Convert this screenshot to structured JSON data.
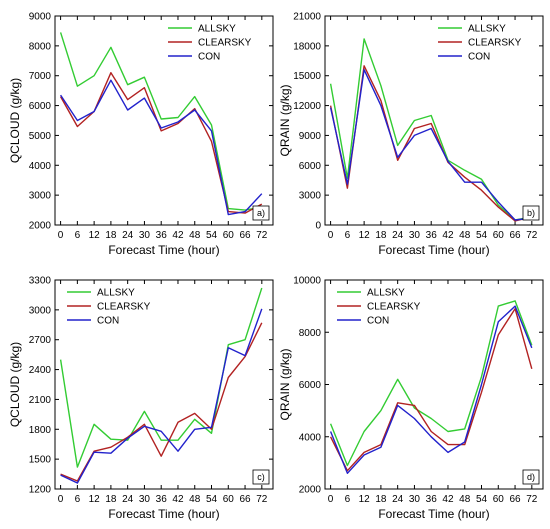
{
  "colors": {
    "ALLSKY": "#33cc33",
    "CLEARSKY": "#b22222",
    "CON": "#2222cc"
  },
  "chart_data": [
    {
      "type": "line",
      "panel_tag": "a)",
      "xlabel": "Forecast Time (hour)",
      "ylabel": "QCLOUD (g/kg)",
      "x": [
        0,
        6,
        12,
        18,
        24,
        30,
        36,
        42,
        48,
        54,
        60,
        66,
        72
      ],
      "xlim": [
        -2,
        76
      ],
      "ylim": [
        2000,
        9000
      ],
      "yticks": [
        2000,
        3000,
        4000,
        5000,
        6000,
        7000,
        8000,
        9000
      ],
      "legend_position": "top-right",
      "series": [
        {
          "name": "ALLSKY",
          "color": "#33cc33",
          "values": [
            8450,
            6650,
            7000,
            7950,
            6700,
            6950,
            5550,
            5600,
            6300,
            5350,
            2550,
            2500,
            2600
          ]
        },
        {
          "name": "CLEARSKY",
          "color": "#b22222",
          "values": [
            6300,
            5300,
            5800,
            7100,
            6200,
            6600,
            5150,
            5400,
            5900,
            4800,
            2450,
            2400,
            2700
          ]
        },
        {
          "name": "CON",
          "color": "#2222cc",
          "values": [
            6350,
            5500,
            5800,
            6850,
            5850,
            6250,
            5250,
            5450,
            5850,
            5150,
            2350,
            2450,
            3050
          ]
        }
      ]
    },
    {
      "type": "line",
      "panel_tag": "b)",
      "xlabel": "Forecast Time (hour)",
      "ylabel": "QRAIN (g/kg)",
      "x": [
        0,
        6,
        12,
        18,
        24,
        30,
        36,
        42,
        48,
        54,
        60,
        66,
        72
      ],
      "xlim": [
        -2,
        76
      ],
      "ylim": [
        0,
        21000
      ],
      "yticks": [
        0,
        3000,
        6000,
        9000,
        12000,
        15000,
        18000,
        21000
      ],
      "legend_position": "top-right",
      "series": [
        {
          "name": "ALLSKY",
          "color": "#33cc33",
          "values": [
            14200,
            4700,
            18700,
            14000,
            8000,
            10500,
            11000,
            6500,
            5500,
            4600,
            2000,
            500,
            800
          ]
        },
        {
          "name": "CLEARSKY",
          "color": "#b22222",
          "values": [
            12000,
            3700,
            16000,
            12500,
            6500,
            9700,
            10200,
            6300,
            4800,
            3500,
            1800,
            400,
            800
          ]
        },
        {
          "name": "CON",
          "color": "#2222cc",
          "values": [
            11800,
            4100,
            15600,
            12000,
            6800,
            9000,
            9700,
            6400,
            4300,
            4300,
            2300,
            500,
            700
          ]
        }
      ]
    },
    {
      "type": "line",
      "panel_tag": "c)",
      "xlabel": "Forecast Time (hour)",
      "ylabel": "QCLOUD (g/kg)",
      "x": [
        0,
        6,
        12,
        18,
        24,
        30,
        36,
        42,
        48,
        54,
        60,
        66,
        72
      ],
      "xlim": [
        -2,
        76
      ],
      "ylim": [
        1200,
        3300
      ],
      "yticks": [
        1200,
        1500,
        1800,
        2100,
        2400,
        2700,
        3000,
        3300
      ],
      "legend_position": "top-left",
      "series": [
        {
          "name": "ALLSKY",
          "color": "#33cc33",
          "values": [
            2500,
            1420,
            1850,
            1700,
            1690,
            1980,
            1690,
            1690,
            1900,
            1760,
            2650,
            2700,
            3220
          ]
        },
        {
          "name": "CLEARSKY",
          "color": "#b22222",
          "values": [
            1350,
            1280,
            1580,
            1620,
            1720,
            1850,
            1530,
            1870,
            1960,
            1800,
            2320,
            2530,
            2870
          ]
        },
        {
          "name": "CON",
          "color": "#2222cc",
          "values": [
            1340,
            1260,
            1570,
            1560,
            1710,
            1830,
            1780,
            1580,
            1800,
            1820,
            2620,
            2540,
            3010
          ]
        }
      ]
    },
    {
      "type": "line",
      "panel_tag": "d)",
      "xlabel": "Forecast Time (hour)",
      "ylabel": "QRAIN (g/kg)",
      "x": [
        0,
        6,
        12,
        18,
        24,
        30,
        36,
        42,
        48,
        54,
        60,
        66,
        72
      ],
      "xlim": [
        -2,
        76
      ],
      "ylim": [
        2000,
        10000
      ],
      "yticks": [
        2000,
        4000,
        6000,
        8000,
        10000
      ],
      "legend_position": "top-left",
      "series": [
        {
          "name": "ALLSKY",
          "color": "#33cc33",
          "values": [
            4500,
            2900,
            4200,
            5000,
            6200,
            5100,
            4700,
            4200,
            4300,
            6300,
            9000,
            9200,
            7500
          ]
        },
        {
          "name": "CLEARSKY",
          "color": "#b22222",
          "values": [
            4000,
            2700,
            3400,
            3700,
            5300,
            5200,
            4200,
            3700,
            3700,
            5700,
            7900,
            8900,
            6600
          ]
        },
        {
          "name": "CON",
          "color": "#2222cc",
          "values": [
            4200,
            2600,
            3300,
            3600,
            5200,
            4700,
            4000,
            3400,
            3800,
            6000,
            8400,
            9000,
            7400
          ]
        }
      ]
    }
  ]
}
